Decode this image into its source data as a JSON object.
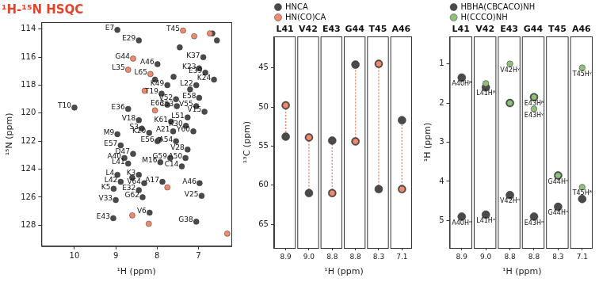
{
  "chart_data": [
    {
      "type": "scatter",
      "title": "¹H-¹⁵N HSQC",
      "x_label": "¹H (ppm)",
      "y_label": "¹⁵N (ppm)",
      "xlim": [
        10.8,
        6.2
      ],
      "xticks": [
        10,
        9,
        8,
        7
      ],
      "ylim": [
        129.5,
        113.5
      ],
      "yticks": [
        114,
        116,
        118,
        120,
        122,
        124,
        126,
        128
      ],
      "series": [
        {
          "color": "#4a4a4a",
          "marker": "circle",
          "points": [
            {
              "x": 8.96,
              "y": 114.05,
              "label": "E7"
            },
            {
              "x": 8.44,
              "y": 114.8,
              "label": "E29"
            },
            {
              "x": 6.88,
              "y": 116.0,
              "label": "K37"
            },
            {
              "x": 7.99,
              "y": 116.5,
              "label": "A46"
            },
            {
              "x": 6.98,
              "y": 116.8,
              "label": "K23"
            },
            {
              "x": 6.83,
              "y": 117.1,
              "label": "E39"
            },
            {
              "x": 6.62,
              "y": 117.6,
              "label": "K24"
            },
            {
              "x": 7.75,
              "y": 118.0,
              "label": "K49"
            },
            {
              "x": 7.05,
              "y": 118.0,
              "label": "L22"
            },
            {
              "x": 7.89,
              "y": 118.6,
              "label": "T19"
            },
            {
              "x": 7.54,
              "y": 119.0,
              "label": "V52"
            },
            {
              "x": 6.98,
              "y": 118.9,
              "label": "E58"
            },
            {
              "x": 7.75,
              "y": 119.4,
              "label": "E63"
            },
            {
              "x": 7.52,
              "y": 119.5,
              "label": "C53"
            },
            {
              "x": 7.05,
              "y": 119.5,
              "label": "V55"
            },
            {
              "x": 10.0,
              "y": 119.6,
              "label": "T10"
            },
            {
              "x": 8.7,
              "y": 119.7,
              "label": "E36"
            },
            {
              "x": 6.85,
              "y": 119.9,
              "label": "V15"
            },
            {
              "x": 7.26,
              "y": 120.3,
              "label": "L51"
            },
            {
              "x": 8.44,
              "y": 120.5,
              "label": "V18"
            },
            {
              "x": 7.66,
              "y": 120.6,
              "label": "K61"
            },
            {
              "x": 7.3,
              "y": 120.9,
              "label": "K30"
            },
            {
              "x": 8.37,
              "y": 121.1,
              "label": "S3"
            },
            {
              "x": 7.12,
              "y": 121.3,
              "label": "Y60"
            },
            {
              "x": 7.61,
              "y": 121.3,
              "label": "A21"
            },
            {
              "x": 8.19,
              "y": 121.4,
              "label": "K20"
            },
            {
              "x": 8.96,
              "y": 121.5,
              "label": "M9"
            },
            {
              "x": 7.99,
              "y": 122.0,
              "label": "E56"
            },
            {
              "x": 7.54,
              "y": 122.0,
              "label": "A54"
            },
            {
              "x": 8.88,
              "y": 122.3,
              "label": "E57"
            },
            {
              "x": 7.26,
              "y": 122.6,
              "label": "V28"
            },
            {
              "x": 8.58,
              "y": 122.9,
              "label": "D47"
            },
            {
              "x": 8.79,
              "y": 123.2,
              "label": "A40"
            },
            {
              "x": 7.68,
              "y": 123.2,
              "label": "G59"
            },
            {
              "x": 7.31,
              "y": 123.2,
              "label": "A50"
            },
            {
              "x": 7.92,
              "y": 123.5,
              "label": "M16"
            },
            {
              "x": 8.7,
              "y": 123.6,
              "label": "L41"
            },
            {
              "x": 7.4,
              "y": 123.8,
              "label": "C14"
            },
            {
              "x": 8.96,
              "y": 124.4,
              "label": "L4"
            },
            {
              "x": 8.44,
              "y": 124.4,
              "label": "K3"
            },
            {
              "x": 8.88,
              "y": 124.9,
              "label": "L42"
            },
            {
              "x": 7.87,
              "y": 124.9,
              "label": "A17"
            },
            {
              "x": 8.31,
              "y": 125.0,
              "label": "V64"
            },
            {
              "x": 6.97,
              "y": 125.0,
              "label": "A46"
            },
            {
              "x": 9.05,
              "y": 125.4,
              "label": "K5"
            },
            {
              "x": 8.44,
              "y": 125.5,
              "label": "E32"
            },
            {
              "x": 6.92,
              "y": 125.9,
              "label": "V25"
            },
            {
              "x": 8.35,
              "y": 126.0,
              "label": "G62"
            },
            {
              "x": 9.0,
              "y": 126.2,
              "label": "V33"
            },
            {
              "x": 8.18,
              "y": 127.1,
              "label": "V6"
            },
            {
              "x": 9.06,
              "y": 127.5,
              "label": "E43"
            },
            {
              "x": 7.05,
              "y": 127.75,
              "label": "G38"
            },
            {
              "x": 6.66,
              "y": 114.3
            },
            {
              "x": 6.55,
              "y": 114.8
            },
            {
              "x": 7.45,
              "y": 115.3
            },
            {
              "x": 8.05,
              "y": 117.6
            },
            {
              "x": 7.2,
              "y": 118.3
            },
            {
              "x": 7.95,
              "y": 121.9
            },
            {
              "x": 8.6,
              "y": 124.6
            },
            {
              "x": 7.6,
              "y": 117.4
            }
          ]
        },
        {
          "color": "#ee8a6e",
          "marker": "circle",
          "points": [
            {
              "x": 7.37,
              "y": 114.1,
              "label": "T45"
            },
            {
              "x": 8.58,
              "y": 116.1,
              "label": "G44"
            },
            {
              "x": 8.7,
              "y": 116.9,
              "label": "L35"
            },
            {
              "x": 8.16,
              "y": 117.2,
              "label": "L65"
            },
            {
              "x": 7.1,
              "y": 114.5
            },
            {
              "x": 6.72,
              "y": 114.3
            },
            {
              "x": 8.3,
              "y": 118.4
            },
            {
              "x": 7.75,
              "y": 125.3
            },
            {
              "x": 8.2,
              "y": 127.9
            },
            {
              "x": 6.3,
              "y": 128.6
            },
            {
              "x": 8.6,
              "y": 127.3
            },
            {
              "x": 8.05,
              "y": 119.8
            }
          ]
        }
      ]
    },
    {
      "type": "strip",
      "legend": "top",
      "x_label": "¹H (ppm)",
      "y_label": "¹³C (ppm)",
      "ylim": [
        68,
        41
      ],
      "yticks": [
        45,
        50,
        55,
        60,
        65
      ],
      "strips": [
        {
          "name": "L41",
          "x_tick": 8.9
        },
        {
          "name": "V42",
          "x_tick": {
            "value": 9.0,
            "label": "9.0"
          }
        },
        {
          "name": "E43",
          "x_tick": 8.8
        },
        {
          "name": "G44",
          "x_tick": 8.8
        },
        {
          "name": "T45",
          "x_tick": 8.3
        },
        {
          "name": "A46",
          "x_tick": 7.1
        }
      ],
      "series": [
        {
          "name": "HNCA",
          "color": "#4a4a4a",
          "marker": "circle",
          "values": [
            [
              49.8,
              53.8
            ],
            [
              53.9,
              61.0
            ],
            [
              61.0,
              54.3
            ],
            [
              54.4,
              44.6
            ],
            [
              44.5,
              60.5
            ],
            [
              60.5,
              51.7
            ]
          ]
        },
        {
          "name": "HN(CO)CA",
          "color": "#ee8a6e",
          "marker": "circle",
          "line_style": "dotted",
          "values": [
            [
              49.8
            ],
            [
              53.9
            ],
            [
              61.0
            ],
            [
              54.4
            ],
            [
              44.5
            ],
            [
              60.5
            ]
          ]
        }
      ]
    },
    {
      "type": "strip",
      "legend": "top",
      "x_label": "¹H (ppm)",
      "y_label": "¹H (ppm)",
      "ylim": [
        5.7,
        0.3
      ],
      "yticks": [
        1,
        2,
        3,
        4,
        5
      ],
      "strips": [
        {
          "name": "L41",
          "x_tick": 8.9
        },
        {
          "name": "V42",
          "x_tick": {
            "value": 9.0,
            "label": "9.0"
          }
        },
        {
          "name": "E43",
          "x_tick": 8.8
        },
        {
          "name": "G44",
          "x_tick": 8.8
        },
        {
          "name": "T45",
          "x_tick": 8.3
        },
        {
          "name": "A46",
          "x_tick": 7.1
        }
      ],
      "series": [
        {
          "name": "HBHA(CBCACO)NH",
          "color": "#4a4a4a",
          "marker": "circle",
          "values": [
            [
              {
                "y": 1.35,
                "label": "A40Hᵝ"
              },
              {
                "y": 4.9,
                "label": "A40Hᵅ"
              }
            ],
            [
              {
                "y": 1.6,
                "label": "L41Hᵝ"
              },
              {
                "y": 4.85,
                "label": "L41Hᵅ"
              }
            ],
            [
              {
                "y": 2.0
              },
              {
                "y": 4.35,
                "label": "V42Hᵅ"
              }
            ],
            [
              {
                "y": 1.85,
                "label": "E43Hᵝ"
              },
              {
                "y": 4.9,
                "label": "E43Hᵅ"
              }
            ],
            [
              {
                "y": 3.85,
                "label": "G44Hᵅ"
              },
              {
                "y": 4.65,
                "label": "G44Hᵅ"
              }
            ],
            [
              {
                "y": 4.45
              }
            ]
          ]
        },
        {
          "name": "H(CCCO)NH",
          "color": "#8fbf7a",
          "marker": "circle",
          "values": [
            [],
            [
              {
                "y": 1.5
              }
            ],
            [
              {
                "y": 1.0,
                "label": "V42Hᵞ"
              },
              {
                "y": 2.0
              }
            ],
            [
              {
                "y": 2.15,
                "label": "E43Hᵞ"
              },
              {
                "y": 1.85
              }
            ],
            [
              {
                "y": 3.85
              }
            ],
            [
              {
                "y": 1.1,
                "label": "T45Hᵞ"
              },
              {
                "y": 4.15,
                "label": "T45Hᵝ"
              }
            ]
          ]
        }
      ]
    }
  ]
}
